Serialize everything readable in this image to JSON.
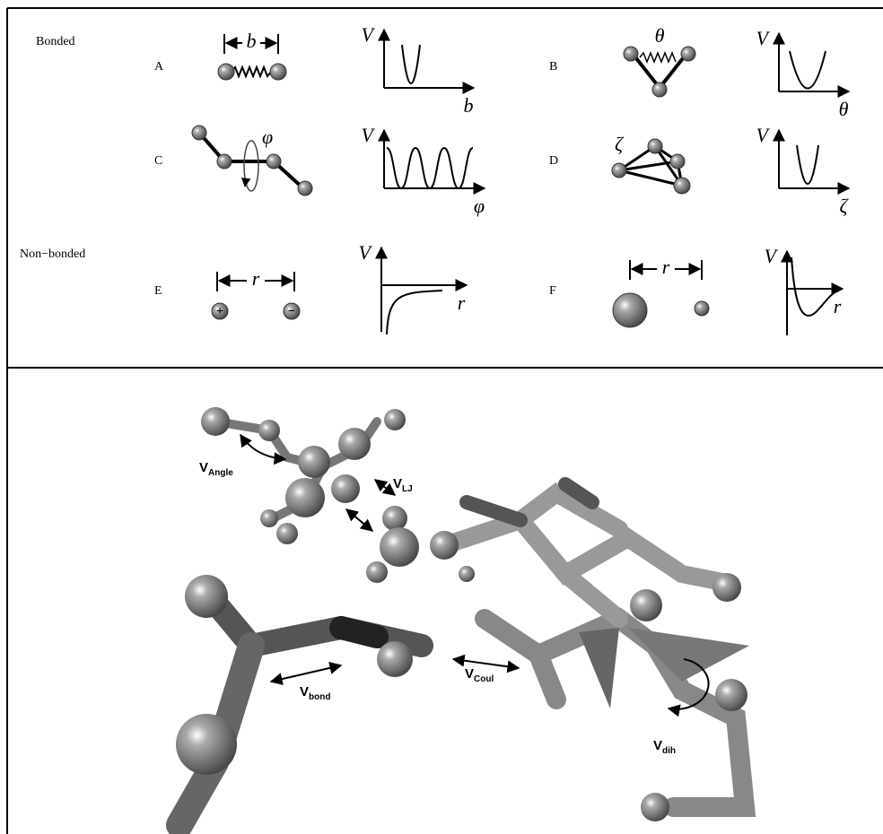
{
  "sections": {
    "bonded": "Bonded",
    "non_bonded": "Non−bonded"
  },
  "panels": [
    {
      "label": "A",
      "parameter": "b",
      "axis_y": "V",
      "axis_x": "b"
    },
    {
      "label": "B",
      "parameter": "θ",
      "axis_y": "V",
      "axis_x": "θ"
    },
    {
      "label": "C",
      "parameter": "φ",
      "axis_y": "V",
      "axis_x": "φ"
    },
    {
      "label": "D",
      "parameter": "ζ",
      "axis_y": "V",
      "axis_x": "ζ"
    },
    {
      "label": "E",
      "parameter": "r",
      "axis_y": "V",
      "axis_x": "r",
      "charges": [
        "+",
        "−"
      ]
    },
    {
      "label": "F",
      "parameter": "r",
      "axis_y": "V",
      "axis_x": "r"
    }
  ],
  "labels": [
    {
      "symbol": "V",
      "subscript": "Angle"
    },
    {
      "symbol": "V",
      "subscript": "LJ"
    },
    {
      "symbol": "V",
      "subscript": "bond"
    },
    {
      "symbol": "V",
      "subscript": "Coul"
    },
    {
      "symbol": "V",
      "subscript": "dih"
    }
  ]
}
